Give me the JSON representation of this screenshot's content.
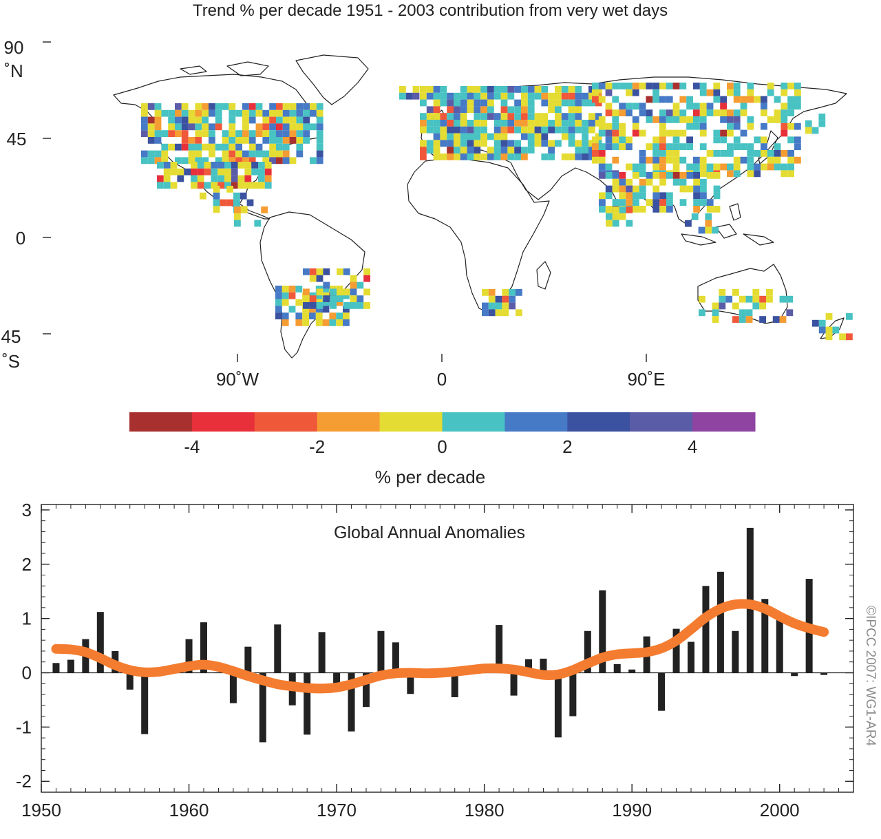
{
  "map": {
    "title": "Trend % per decade 1951 - 2003 contribution from very wet days",
    "lat_labels": [
      {
        "lat": 90,
        "lines": [
          "90",
          "˚N"
        ]
      },
      {
        "lat": 45,
        "lines": [
          "45"
        ]
      },
      {
        "lat": 0,
        "lines": [
          "0"
        ]
      },
      {
        "lat": -45,
        "lines": [
          "45",
          "˚S"
        ]
      }
    ],
    "lon_labels": [
      {
        "lon": -90,
        "text": "90˚W"
      },
      {
        "lon": 0,
        "text": "0"
      },
      {
        "lon": 90,
        "text": "90˚E"
      }
    ]
  },
  "colorbar": {
    "label": "% per decade",
    "range": [
      -5,
      5
    ],
    "colors": [
      "#a8302e",
      "#e8303a",
      "#f0583a",
      "#f59c32",
      "#e4dc32",
      "#48c2c2",
      "#4679c6",
      "#3a52a0",
      "#5b5ca8",
      "#8e44a0"
    ],
    "ticks": [
      {
        "value": -4,
        "text": "-4"
      },
      {
        "value": -2,
        "text": "-2"
      },
      {
        "value": 0,
        "text": "0"
      },
      {
        "value": 2,
        "text": "2"
      },
      {
        "value": 4,
        "text": "4"
      }
    ]
  },
  "copyright": "©IPCC  2007: WG1-AR4",
  "chart_data": {
    "type": "bar",
    "title": "Global Annual Anomalies",
    "x": [
      1951,
      1952,
      1953,
      1954,
      1955,
      1956,
      1957,
      1958,
      1959,
      1960,
      1961,
      1962,
      1963,
      1964,
      1965,
      1966,
      1967,
      1968,
      1969,
      1970,
      1971,
      1972,
      1973,
      1974,
      1975,
      1976,
      1977,
      1978,
      1979,
      1980,
      1981,
      1982,
      1983,
      1984,
      1985,
      1986,
      1987,
      1988,
      1989,
      1990,
      1991,
      1992,
      1993,
      1994,
      1995,
      1996,
      1997,
      1998,
      1999,
      2000,
      2001,
      2002,
      2003
    ],
    "values": [
      0.18,
      0.24,
      0.62,
      1.12,
      0.4,
      -0.31,
      -1.13,
      0.0,
      0.0,
      0.62,
      0.93,
      0.01,
      -0.56,
      0.48,
      -1.28,
      0.89,
      -0.6,
      -1.14,
      0.75,
      -0.29,
      -1.08,
      -0.63,
      0.77,
      0.56,
      -0.39,
      0.0,
      0.0,
      -0.45,
      0.0,
      0.15,
      0.88,
      -0.42,
      0.25,
      0.26,
      -1.19,
      -0.8,
      0.77,
      1.52,
      0.16,
      0.06,
      0.67,
      -0.7,
      0.81,
      0.57,
      1.6,
      1.86,
      0.77,
      2.67,
      1.36,
      0.98,
      -0.06,
      1.73,
      -0.04
    ],
    "smoothed": [
      0.44,
      0.43,
      0.38,
      0.27,
      0.14,
      0.05,
      0.01,
      0.02,
      0.07,
      0.12,
      0.15,
      0.11,
      0.03,
      -0.06,
      -0.14,
      -0.21,
      -0.25,
      -0.28,
      -0.29,
      -0.27,
      -0.21,
      -0.13,
      -0.05,
      -0.01,
      0.0,
      -0.01,
      0.0,
      0.02,
      0.05,
      0.08,
      0.08,
      0.06,
      0.01,
      -0.04,
      -0.03,
      0.05,
      0.17,
      0.28,
      0.34,
      0.36,
      0.38,
      0.45,
      0.59,
      0.8,
      1.02,
      1.18,
      1.26,
      1.26,
      1.18,
      1.04,
      0.91,
      0.82,
      0.75
    ],
    "xlim": [
      1950,
      2005
    ],
    "ylim": [
      -2.2,
      3.1
    ],
    "x_ticks": [
      1950,
      1960,
      1970,
      1980,
      1990,
      2000
    ],
    "y_ticks": [
      -2,
      -1,
      0,
      1,
      2,
      3
    ],
    "bar_color": "#222222",
    "line_color": "#f47c30"
  }
}
